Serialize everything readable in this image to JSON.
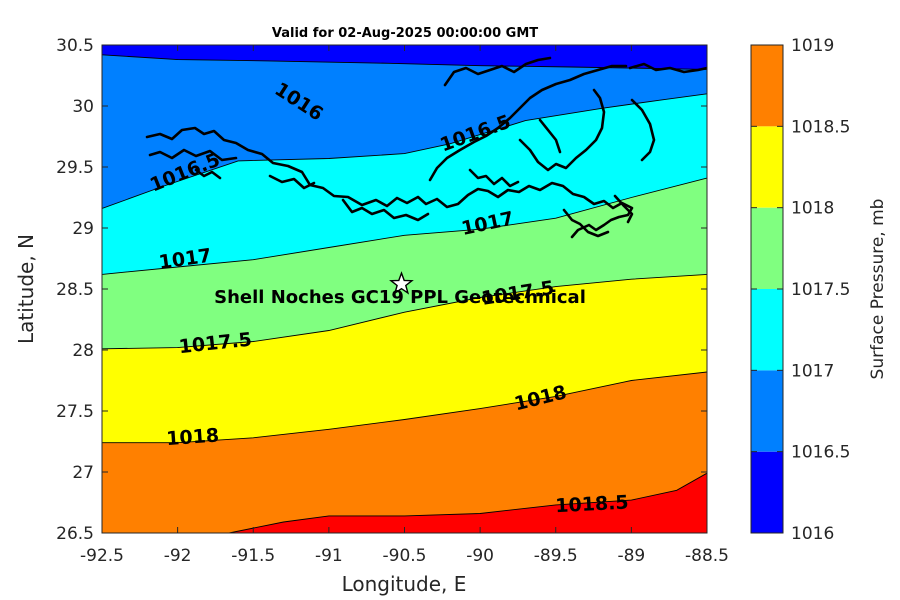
{
  "chart_data": {
    "type": "contour",
    "title": "Valid for 02-Aug-2025 00:00:00 GMT",
    "xlabel": "Longitude, E",
    "ylabel": "Latitude, N",
    "xlim": [
      -92.5,
      -88.5
    ],
    "ylim": [
      26.5,
      30.5
    ],
    "xticks": [
      -92.5,
      -92,
      -91.5,
      -91,
      -90.5,
      -90,
      -89.5,
      -89,
      -88.5
    ],
    "xtick_labels": [
      "-92.5",
      "-92",
      "-91.5",
      "-91",
      "-90.5",
      "-90",
      "-89.5",
      "-89",
      "-88.5"
    ],
    "yticks": [
      26.5,
      27,
      27.5,
      28,
      28.5,
      29,
      29.5,
      30,
      30.5
    ],
    "ytick_labels": [
      "26.5",
      "27",
      "27.5",
      "28",
      "28.5",
      "29",
      "29.5",
      "30",
      "30.5"
    ],
    "colorbar": {
      "label": "Surface Pressure, mb",
      "levels": [
        1016,
        1016.5,
        1017,
        1017.5,
        1018,
        1018.5,
        1019
      ],
      "tick_labels": [
        "1016",
        "1016.5",
        "1017",
        "1017.5",
        "1018",
        "1018.5",
        "1019"
      ],
      "colors": [
        "#0000FF",
        "#0080FF",
        "#00FFFF",
        "#80FF80",
        "#FFFF00",
        "#FF8000",
        "#FF0000"
      ]
    },
    "contours": [
      {
        "level": 1016,
        "label": "1016",
        "points": [
          [
            -92.5,
            30.42
          ],
          [
            -92.0,
            30.38
          ],
          [
            -91.4,
            30.37
          ],
          [
            -90.6,
            30.35
          ],
          [
            -90.0,
            30.33
          ],
          [
            -89.4,
            30.32
          ],
          [
            -88.5,
            30.3
          ]
        ]
      },
      {
        "level": 1016.5,
        "label": "1016.5",
        "points": [
          [
            -92.5,
            29.16
          ],
          [
            -92.1,
            29.34
          ],
          [
            -91.6,
            29.55
          ],
          [
            -91.0,
            29.57
          ],
          [
            -90.5,
            29.61
          ],
          [
            -90.2,
            29.69
          ],
          [
            -89.7,
            29.88
          ],
          [
            -89.2,
            29.98
          ],
          [
            -88.8,
            30.05
          ],
          [
            -88.5,
            30.1
          ]
        ]
      },
      {
        "level": 1017,
        "label": "1017",
        "points": [
          [
            -92.5,
            28.62
          ],
          [
            -92.0,
            28.68
          ],
          [
            -91.5,
            28.74
          ],
          [
            -91.0,
            28.84
          ],
          [
            -90.5,
            28.94
          ],
          [
            -90.0,
            28.99
          ],
          [
            -89.5,
            29.08
          ],
          [
            -89.0,
            29.25
          ],
          [
            -88.5,
            29.41
          ]
        ]
      },
      {
        "level": 1017.5,
        "label": "1017.5",
        "points": [
          [
            -92.5,
            28.01
          ],
          [
            -92.0,
            28.02
          ],
          [
            -91.5,
            28.07
          ],
          [
            -91.0,
            28.16
          ],
          [
            -90.5,
            28.31
          ],
          [
            -90.0,
            28.43
          ],
          [
            -89.5,
            28.52
          ],
          [
            -89.0,
            28.58
          ],
          [
            -88.5,
            28.62
          ]
        ]
      },
      {
        "level": 1018,
        "label": "1018",
        "points": [
          [
            -92.5,
            27.24
          ],
          [
            -92.0,
            27.24
          ],
          [
            -91.5,
            27.28
          ],
          [
            -91.0,
            27.35
          ],
          [
            -90.5,
            27.43
          ],
          [
            -90.0,
            27.52
          ],
          [
            -89.5,
            27.62
          ],
          [
            -89.0,
            27.75
          ],
          [
            -88.5,
            27.82
          ]
        ]
      },
      {
        "level": 1018.5,
        "label": "1018.5",
        "points": [
          [
            -91.66,
            26.5
          ],
          [
            -91.3,
            26.59
          ],
          [
            -91.0,
            26.64
          ],
          [
            -90.5,
            26.64
          ],
          [
            -90.0,
            26.66
          ],
          [
            -89.5,
            26.73
          ],
          [
            -89.0,
            26.77
          ],
          [
            -88.7,
            26.85
          ],
          [
            -88.5,
            26.99
          ]
        ]
      }
    ],
    "contour_labels": [
      {
        "text": "1016",
        "lon": -91.2,
        "lat": 30.03,
        "angle": 33
      },
      {
        "text": "1016.5",
        "lon": -90.03,
        "lat": 29.77,
        "angle": -20
      },
      {
        "text": "1016.5",
        "lon": -91.95,
        "lat": 29.45,
        "angle": -22
      },
      {
        "text": "1017",
        "lon": -89.95,
        "lat": 29.03,
        "angle": -12
      },
      {
        "text": "1017",
        "lon": -91.95,
        "lat": 28.74,
        "angle": -8
      },
      {
        "text": "1017.5",
        "lon": -89.75,
        "lat": 28.46,
        "angle": -9
      },
      {
        "text": "1017.5",
        "lon": -91.75,
        "lat": 28.05,
        "angle": -6
      },
      {
        "text": "1018",
        "lon": -89.6,
        "lat": 27.6,
        "angle": -14
      },
      {
        "text": "1018",
        "lon": -91.9,
        "lat": 27.28,
        "angle": -4
      },
      {
        "text": "1018.5",
        "lon": -89.26,
        "lat": 26.73,
        "angle": -3
      }
    ],
    "site": {
      "name": "Shell Noches   GC19 PPL Geotechnical",
      "lon": -90.52,
      "lat": 28.54,
      "marker": "star"
    }
  }
}
